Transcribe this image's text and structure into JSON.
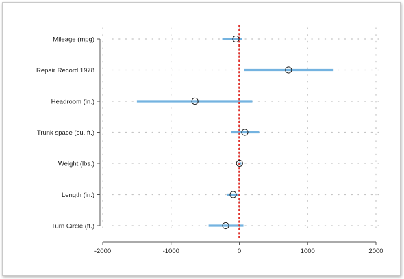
{
  "chart_data": {
    "type": "scatter",
    "orientation": "horizontal",
    "categories": [
      "Mileage (mpg)",
      "Repair Record 1978",
      "Headroom (in.)",
      "Trunk space (cu. ft.)",
      "Weight (lbs.)",
      "Length (in.)",
      "Turn Circle (ft.)"
    ],
    "estimates": [
      -50,
      720,
      -650,
      80,
      3,
      -90,
      -200
    ],
    "ci_low": [
      -250,
      70,
      -1500,
      -120,
      -20,
      -180,
      -450
    ],
    "ci_high": [
      40,
      1380,
      190,
      290,
      30,
      10,
      60
    ],
    "xlim": [
      -2000,
      2000
    ],
    "xticks": [
      -2000,
      -1000,
      0,
      1000,
      2000
    ],
    "xtick_labels": [
      "-2000",
      "-1000",
      "0",
      "1000",
      "2000"
    ],
    "reference_line": 0,
    "grid": true,
    "title": "",
    "xlabel": "",
    "ylabel": "",
    "colors": {
      "ci_bar": "#74b3e0",
      "marker_edge": "#1a1a1a",
      "reference_line": "#e0322c",
      "grid": "#c4c4c4",
      "axis": "#555555",
      "text": "#1a1a1a"
    }
  }
}
